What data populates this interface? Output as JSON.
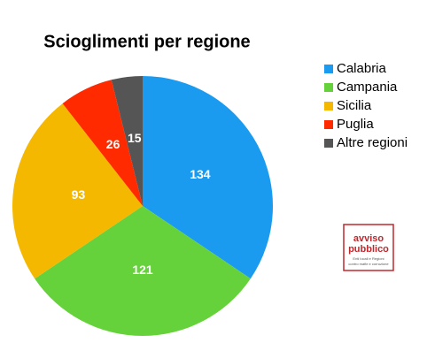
{
  "chart_data": {
    "type": "pie",
    "title": "Scioglimenti per regione",
    "categories": [
      "Calabria",
      "Campania",
      "Sicilia",
      "Puglia",
      "Altre regioni"
    ],
    "values": [
      134,
      121,
      93,
      26,
      15
    ],
    "colors": [
      "#1a9bf0",
      "#66d23b",
      "#f5b800",
      "#ff2a00",
      "#555555"
    ],
    "legend": "right"
  },
  "logo": {
    "line1": "avviso",
    "line2": "pubblico",
    "tagline1": "Enti locali e Regioni",
    "tagline2": "contro mafie e corruzione"
  }
}
